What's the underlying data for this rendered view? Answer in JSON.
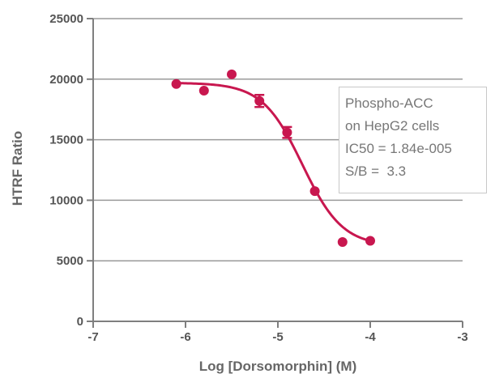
{
  "chart_data": {
    "type": "scatter",
    "title": "",
    "xlabel": "Log [Dorsomorphin] (M)",
    "ylabel": "HTRF Ratio",
    "xlim": [
      -7,
      -3
    ],
    "ylim": [
      0,
      25000
    ],
    "x_ticks": [
      "-7",
      "-6",
      "-5",
      "-4",
      "-3"
    ],
    "y_ticks": [
      "0",
      "5000",
      "10000",
      "15000",
      "20000",
      "25000"
    ],
    "grid": "horizontal",
    "colors": {
      "series": "#c8174f",
      "axis": "#7f7f7f",
      "grid": "#9a9a9a"
    },
    "series": [
      {
        "points": [
          {
            "x": -6.1,
            "y": 19600,
            "err": 0
          },
          {
            "x": -5.8,
            "y": 19050,
            "err": 0
          },
          {
            "x": -5.5,
            "y": 20400,
            "err": 0
          },
          {
            "x": -5.2,
            "y": 18200,
            "err": 500
          },
          {
            "x": -4.9,
            "y": 15600,
            "err": 450
          },
          {
            "x": -4.6,
            "y": 10750,
            "err": 0
          },
          {
            "x": -4.3,
            "y": 6550,
            "err": 0
          },
          {
            "x": -4.0,
            "y": 6650,
            "err": 0
          }
        ],
        "fit": {
          "top": 19700,
          "bottom": 6200,
          "log_ic50": -4.735,
          "hill": 2.0,
          "x_range": [
            -6.1,
            -4.0
          ]
        }
      }
    ],
    "annotation": [
      "Phospho-ACC",
      "on HepG2 cells",
      "IC50 = 1.84e-005",
      "S/B =  3.3"
    ]
  }
}
